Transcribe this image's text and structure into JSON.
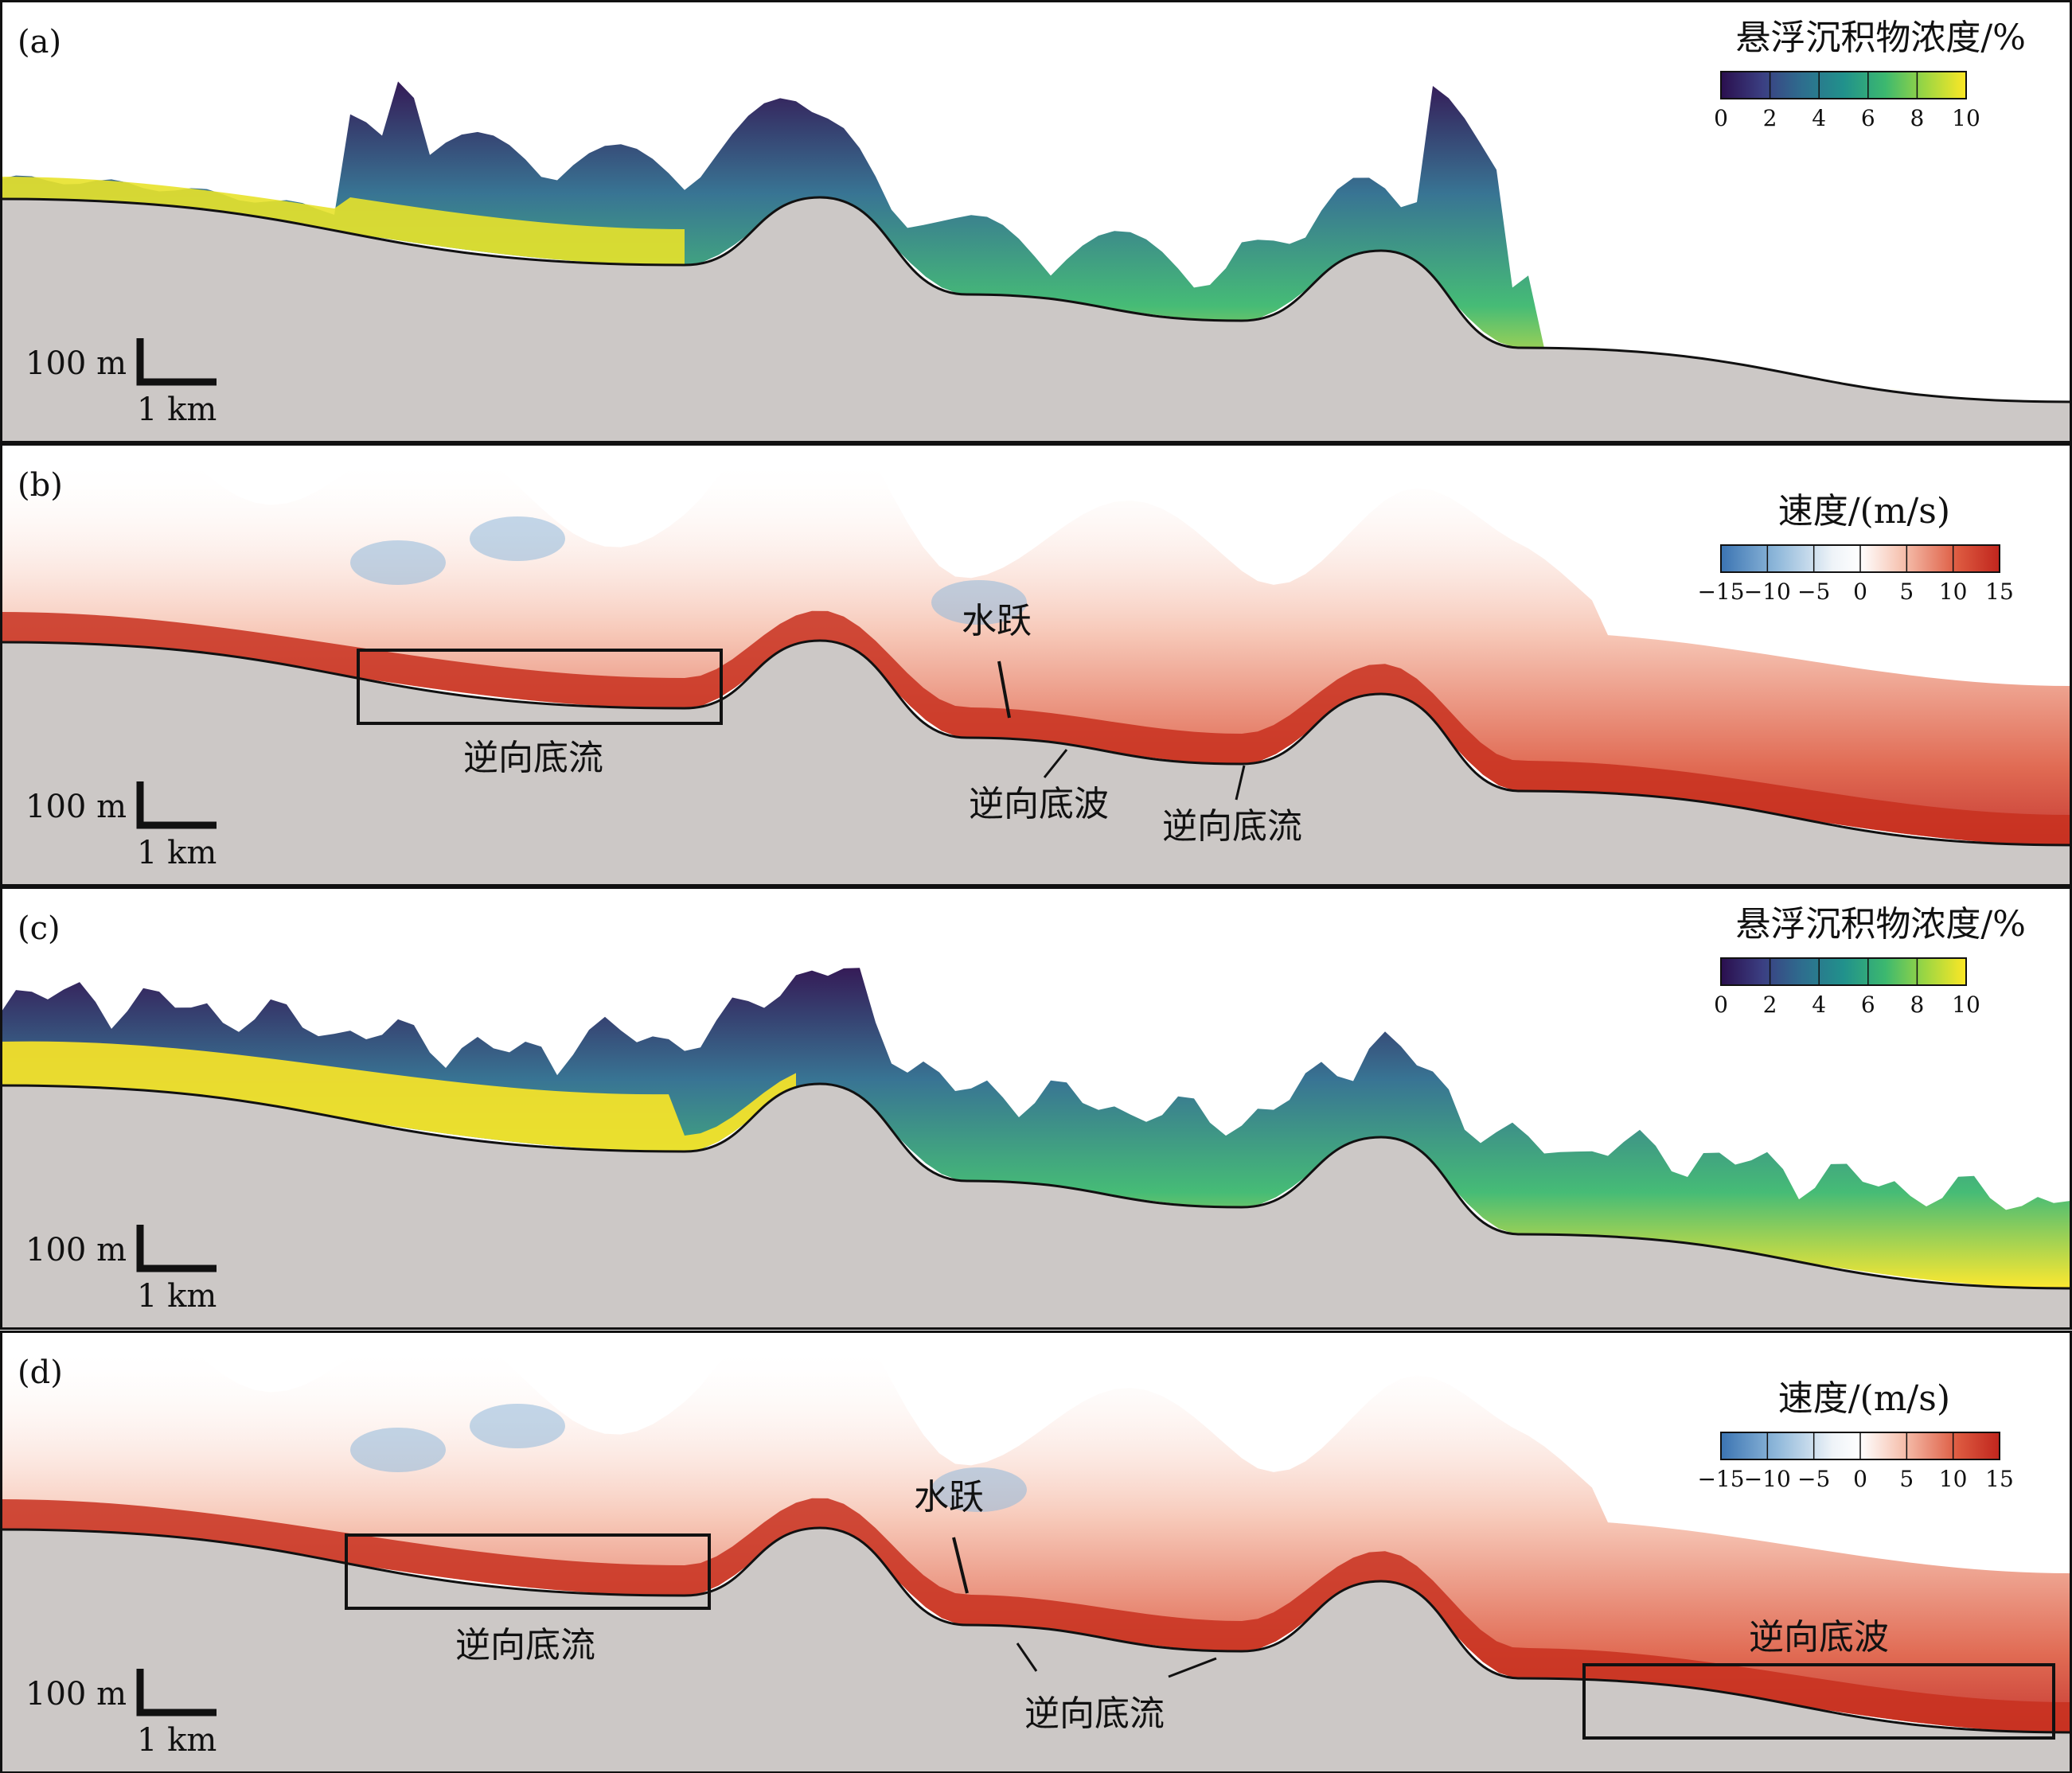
{
  "panels": [
    {
      "label": "(a)",
      "kind": "concentration",
      "colorbar_title": "悬浮沉积物浓度/%",
      "colorbar_ticks": [
        "0",
        "2",
        "4",
        "6",
        "8",
        "10"
      ],
      "scale_vertical": "100 m",
      "scale_horizontal": "1 km",
      "annotations": []
    },
    {
      "label": "(b)",
      "kind": "velocity",
      "colorbar_title": "速度/(m/s)",
      "colorbar_ticks": [
        "−15",
        "−10",
        "−5",
        "0",
        "5",
        "10",
        "15"
      ],
      "scale_vertical": "100 m",
      "scale_horizontal": "1 km",
      "annotations": [
        "逆向底流",
        "水跃",
        "逆向底波",
        "逆向底流"
      ]
    },
    {
      "label": "(c)",
      "kind": "concentration",
      "colorbar_title": "悬浮沉积物浓度/%",
      "colorbar_ticks": [
        "0",
        "2",
        "4",
        "6",
        "8",
        "10"
      ],
      "scale_vertical": "100 m",
      "scale_horizontal": "1 km",
      "annotations": []
    },
    {
      "label": "(d)",
      "kind": "velocity",
      "colorbar_title": "速度/(m/s)",
      "colorbar_ticks": [
        "−15",
        "−10",
        "−5",
        "0",
        "5",
        "10",
        "15"
      ],
      "scale_vertical": "100 m",
      "scale_horizontal": "1 km",
      "annotations": [
        "逆向底流",
        "水跃",
        "逆向底流",
        "逆向底波"
      ]
    }
  ],
  "colors": {
    "seabed": "#ccc8c6",
    "viridis": [
      "#2a0f4e",
      "#3b3f82",
      "#2e6d8e",
      "#21918c",
      "#3cb86f",
      "#9bd643",
      "#fde725"
    ],
    "velocity_map": [
      "#3b74b2",
      "#8fb8da",
      "#eef3f8",
      "#ffffff",
      "#f6c2b0",
      "#dd5a40",
      "#c0251d"
    ]
  }
}
